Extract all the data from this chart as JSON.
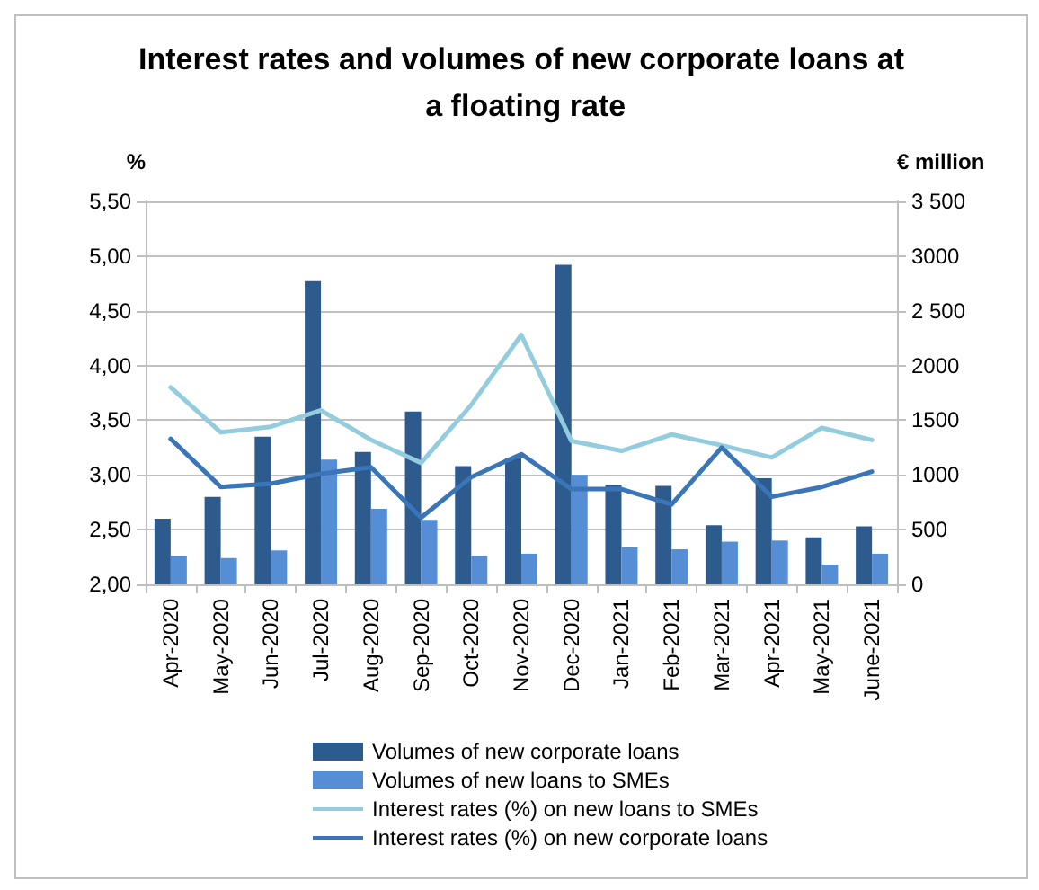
{
  "chart_data": {
    "type": "bar",
    "title": "Interest rates and volumes of new corporate loans at a floating rate",
    "ylabel": "%",
    "y2label": "€ million",
    "categories": [
      "Apr-2020",
      "May-2020",
      "Jun-2020",
      "Jul-2020",
      "Aug-2020",
      "Sep-2020",
      "Oct-2020",
      "Nov-2020",
      "Dec-2020",
      "Jan-2021",
      "Feb-2021",
      "Mar-2021",
      "Apr-2021",
      "May-2021",
      "June-2021"
    ],
    "series": [
      {
        "name": "Volumes of new corporate loans",
        "axis": "y2",
        "color": "#2e5b8e",
        "values": [
          600,
          800,
          1350,
          2770,
          1210,
          1580,
          1080,
          1150,
          2920,
          910,
          900,
          540,
          970,
          430,
          530
        ]
      },
      {
        "name": "Volumes of new loans to SMEs",
        "axis": "y2",
        "color": "#558ed5",
        "values": [
          260,
          240,
          310,
          1140,
          690,
          590,
          260,
          280,
          1000,
          340,
          320,
          390,
          400,
          180,
          280
        ]
      },
      {
        "name": "Interest rates (%) on new loans to SMEs",
        "type": "line",
        "color": "#93cddd",
        "values": [
          3.8,
          3.39,
          3.44,
          3.59,
          3.32,
          3.11,
          3.64,
          4.28,
          3.31,
          3.22,
          3.37,
          3.27,
          3.16,
          3.43,
          3.32
        ]
      },
      {
        "name": "Interest rates (%) on new corporate loans",
        "type": "line",
        "color": "#3a75b8",
        "values": [
          3.33,
          2.89,
          2.92,
          3.01,
          3.07,
          2.61,
          2.98,
          3.19,
          2.87,
          2.87,
          2.73,
          3.25,
          2.8,
          2.89,
          3.03
        ]
      }
    ],
    "ylim": [
      2,
      5.5
    ],
    "yticks": [
      {
        "value": 2,
        "label": "2,00"
      },
      {
        "value": 2.5,
        "label": "2,50"
      },
      {
        "value": 3,
        "label": "3,00"
      },
      {
        "value": 3.5,
        "label": "3,50"
      },
      {
        "value": 4,
        "label": "4,00"
      },
      {
        "value": 4.5,
        "label": "4,50"
      },
      {
        "value": 5,
        "label": "5,00"
      },
      {
        "value": 5.5,
        "label": "5,50"
      }
    ],
    "y2lim": [
      0,
      3500
    ],
    "y2ticks": [
      0,
      500,
      1000,
      1500,
      2000,
      {
        "value": 2500,
        "label": "2 500"
      },
      3000,
      {
        "value": 3500,
        "label": "3 500"
      }
    ],
    "grid": "y",
    "legend": "bottom",
    "marker": "none",
    "line_style": "solid"
  }
}
